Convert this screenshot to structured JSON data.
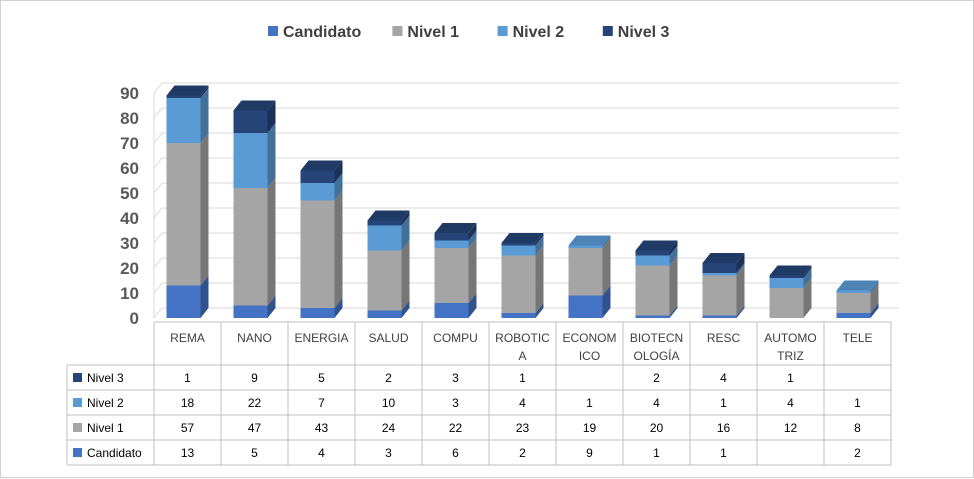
{
  "chart_data": {
    "type": "bar",
    "stacked": true,
    "three_d": true,
    "categories": [
      "REMA",
      "NANO",
      "ENERGIA",
      "SALUD",
      "COMPU",
      "ROBOTIC A",
      "ECONOM ICO",
      "BIOTECN OLOGÍA",
      "RESC",
      "AUTOMO TRIZ",
      "TELE"
    ],
    "category_lines": [
      [
        "REMA"
      ],
      [
        "NANO"
      ],
      [
        "ENERGIA"
      ],
      [
        "SALUD"
      ],
      [
        "COMPU"
      ],
      [
        "ROBOTIC",
        "A"
      ],
      [
        "ECONOM",
        "ICO"
      ],
      [
        "BIOTECN",
        "OLOGÍA"
      ],
      [
        "RESC"
      ],
      [
        "AUTOMO",
        "TRIZ"
      ],
      [
        "TELE"
      ]
    ],
    "series": [
      {
        "name": "Candidato",
        "color": "#4472c4",
        "values": [
          13,
          5,
          4,
          3,
          6,
          2,
          9,
          1,
          1,
          null,
          2
        ]
      },
      {
        "name": "Nivel 1",
        "color": "#a5a5a5",
        "values": [
          57,
          47,
          43,
          24,
          22,
          23,
          19,
          20,
          16,
          12,
          8
        ]
      },
      {
        "name": "Nivel 2",
        "color": "#5b9bd5",
        "values": [
          18,
          22,
          7,
          10,
          3,
          4,
          1,
          4,
          1,
          4,
          1
        ]
      },
      {
        "name": "Nivel 3",
        "color": "#264478",
        "values": [
          1,
          9,
          5,
          2,
          3,
          1,
          null,
          2,
          4,
          1,
          null
        ]
      }
    ],
    "ylim": [
      0,
      90
    ],
    "yticks": [
      0,
      10,
      20,
      30,
      40,
      50,
      60,
      70,
      80,
      90
    ],
    "legend_position": "top",
    "grid": true,
    "data_table": true,
    "table_row_order": [
      "Nivel 3",
      "Nivel 2",
      "Nivel 1",
      "Candidato"
    ]
  }
}
